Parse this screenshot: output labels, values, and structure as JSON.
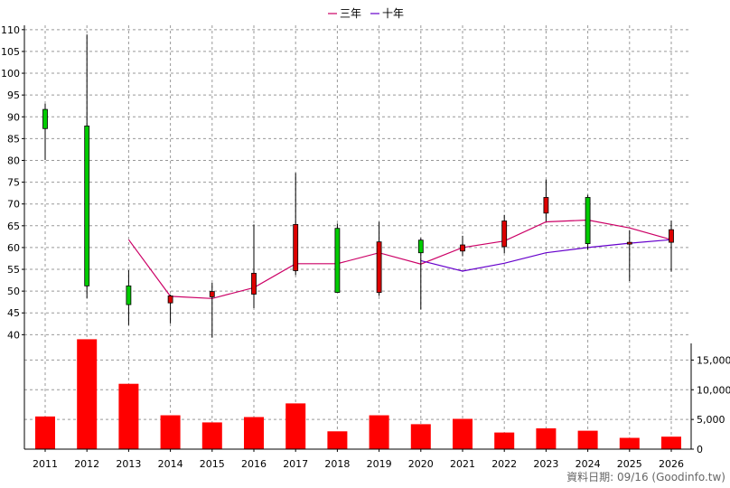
{
  "chart_data": {
    "type": "candlestick",
    "categories": [
      "2011",
      "2012",
      "2013",
      "2014",
      "2015",
      "2016",
      "2017",
      "2018",
      "2019",
      "2020",
      "2021",
      "2022",
      "2023",
      "2024",
      "2025",
      "2026"
    ],
    "candles": [
      {
        "open": 87.3,
        "close": 91.7,
        "high": 93.0,
        "low": 80.1
      },
      {
        "open": 51.2,
        "close": 87.9,
        "high": 108.9,
        "low": 48.4
      },
      {
        "open": 46.9,
        "close": 51.2,
        "high": 54.8,
        "low": 42.2
      },
      {
        "open": 48.9,
        "close": 47.3,
        "high": 49.2,
        "low": 42.6
      },
      {
        "open": 49.9,
        "close": 48.7,
        "high": 51.9,
        "low": 39.3
      },
      {
        "open": 54.1,
        "close": 49.3,
        "high": 65.3,
        "low": 46.1
      },
      {
        "open": 65.3,
        "close": 54.7,
        "high": 77.1,
        "low": 53.7
      },
      {
        "open": 49.7,
        "close": 64.4,
        "high": 65.5,
        "low": 49.7
      },
      {
        "open": 61.3,
        "close": 49.7,
        "high": 65.9,
        "low": 48.9
      },
      {
        "open": 58.8,
        "close": 61.7,
        "high": 62.2,
        "low": 45.8
      },
      {
        "open": 60.6,
        "close": 59.2,
        "high": 62.7,
        "low": 58.0
      },
      {
        "open": 66.1,
        "close": 60.2,
        "high": 67.5,
        "low": 58.7
      },
      {
        "open": 71.5,
        "close": 67.9,
        "high": 75.6,
        "low": 66.0
      },
      {
        "open": 60.9,
        "close": 71.5,
        "high": 72.1,
        "low": 59.5
      },
      {
        "open": 61.2,
        "close": 61.0,
        "high": 64.0,
        "low": 52.3
      },
      {
        "open": 64.1,
        "close": 61.2,
        "high": 66.2,
        "low": 54.5
      }
    ],
    "series": [
      {
        "name": "三年",
        "color": "#cc0066",
        "values": [
          null,
          null,
          61.8,
          48.8,
          48.3,
          50.8,
          56.3,
          56.3,
          58.8,
          56.2,
          60.0,
          61.5,
          65.9,
          66.3,
          64.5,
          61.8
        ]
      },
      {
        "name": "十年",
        "color": "#6600cc",
        "values": [
          null,
          null,
          null,
          null,
          null,
          null,
          null,
          null,
          null,
          57.0,
          54.6,
          56.4,
          58.8,
          60.0,
          61.0,
          61.8
        ]
      }
    ],
    "volume": [
      5500,
      18500,
      11000,
      5700,
      4500,
      5400,
      7700,
      3000,
      5700,
      4200,
      5100,
      2800,
      3500,
      3100,
      1900,
      2100
    ],
    "price_axis": {
      "ticks": [
        40,
        45,
        50,
        55,
        60,
        65,
        70,
        75,
        80,
        85,
        90,
        95,
        100,
        105,
        110
      ],
      "ylim": [
        38,
        111
      ]
    },
    "volume_axis": {
      "ticks": [
        0,
        5000,
        10000,
        15000
      ],
      "tick_labels": [
        "0",
        "5,000",
        "10,000",
        "15,000"
      ],
      "ylim": [
        0,
        17800
      ]
    },
    "colors": {
      "up": "#00cc00",
      "down": "#dd0000",
      "volume_bar": "#ff0000",
      "grid": "#999999"
    },
    "legend_position": "top-center",
    "grid": true
  },
  "footer": {
    "text": "資料日期: 09/16  (Goodinfo.tw)"
  }
}
